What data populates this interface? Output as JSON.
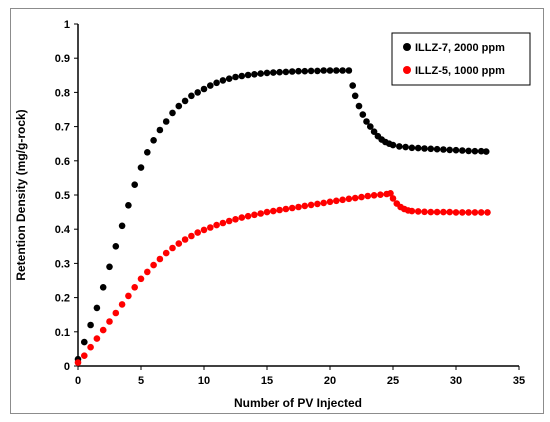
{
  "chart_data": {
    "type": "scatter",
    "xlabel": "Number of PV Injected",
    "ylabel": "Retention Density (mg/g-rock)",
    "xlim": [
      0,
      35
    ],
    "ylim": [
      0,
      1
    ],
    "x_ticks": [
      "0",
      "5",
      "10",
      "15",
      "20",
      "25",
      "30",
      "35"
    ],
    "y_ticks": [
      "0",
      "0.1",
      "0.2",
      "0.3",
      "0.4",
      "0.5",
      "0.6",
      "0.7",
      "0.8",
      "0.9",
      "1"
    ],
    "grid": false,
    "legend_position": "top-right",
    "series": [
      {
        "name": "ILLZ-7, 2000 ppm",
        "color": "#000000",
        "x": [
          0.0,
          0.5,
          1.0,
          1.5,
          2.0,
          2.5,
          3.0,
          3.5,
          4.0,
          4.5,
          5.0,
          5.5,
          6.0,
          6.5,
          7.0,
          7.5,
          8.0,
          8.5,
          9.0,
          9.5,
          10.0,
          10.5,
          11.0,
          11.5,
          12.0,
          12.5,
          13.0,
          13.5,
          14.0,
          14.5,
          15.0,
          15.5,
          16.0,
          16.5,
          17.0,
          17.5,
          18.0,
          18.5,
          19.0,
          19.5,
          20.0,
          20.5,
          21.0,
          21.5,
          21.8,
          22.0,
          22.3,
          22.6,
          22.9,
          23.2,
          23.5,
          23.8,
          24.1,
          24.4,
          24.7,
          25.0,
          25.5,
          26.0,
          26.5,
          27.0,
          27.5,
          28.0,
          28.5,
          29.0,
          29.5,
          30.0,
          30.5,
          31.0,
          31.5,
          32.0,
          32.4
        ],
        "y": [
          0.02,
          0.07,
          0.12,
          0.17,
          0.23,
          0.29,
          0.35,
          0.41,
          0.47,
          0.53,
          0.58,
          0.625,
          0.66,
          0.69,
          0.715,
          0.74,
          0.76,
          0.775,
          0.79,
          0.8,
          0.81,
          0.82,
          0.828,
          0.835,
          0.84,
          0.845,
          0.848,
          0.851,
          0.853,
          0.855,
          0.857,
          0.858,
          0.859,
          0.86,
          0.861,
          0.862,
          0.862,
          0.863,
          0.863,
          0.864,
          0.864,
          0.864,
          0.864,
          0.864,
          0.82,
          0.79,
          0.76,
          0.735,
          0.715,
          0.7,
          0.685,
          0.672,
          0.662,
          0.655,
          0.65,
          0.646,
          0.642,
          0.64,
          0.638,
          0.637,
          0.636,
          0.635,
          0.634,
          0.633,
          0.632,
          0.631,
          0.63,
          0.629,
          0.628,
          0.628,
          0.627
        ]
      },
      {
        "name": "ILLZ-5, 1000 ppm",
        "color": "#ff0000",
        "x": [
          0.0,
          0.5,
          1.0,
          1.5,
          2.0,
          2.5,
          3.0,
          3.5,
          4.0,
          4.5,
          5.0,
          5.5,
          6.0,
          6.5,
          7.0,
          7.5,
          8.0,
          8.5,
          9.0,
          9.5,
          10.0,
          10.5,
          11.0,
          11.5,
          12.0,
          12.5,
          13.0,
          13.5,
          14.0,
          14.5,
          15.0,
          15.5,
          16.0,
          16.5,
          17.0,
          17.5,
          18.0,
          18.5,
          19.0,
          19.5,
          20.0,
          20.5,
          21.0,
          21.5,
          22.0,
          22.5,
          23.0,
          23.5,
          24.0,
          24.5,
          24.8,
          25.0,
          25.3,
          25.6,
          25.9,
          26.2,
          26.5,
          27.0,
          27.5,
          28.0,
          28.5,
          29.0,
          29.5,
          30.0,
          30.5,
          31.0,
          31.5,
          32.0,
          32.5
        ],
        "y": [
          0.01,
          0.03,
          0.055,
          0.08,
          0.105,
          0.13,
          0.155,
          0.18,
          0.205,
          0.23,
          0.255,
          0.275,
          0.295,
          0.313,
          0.33,
          0.345,
          0.358,
          0.37,
          0.38,
          0.39,
          0.398,
          0.405,
          0.412,
          0.418,
          0.424,
          0.429,
          0.434,
          0.438,
          0.442,
          0.446,
          0.45,
          0.453,
          0.456,
          0.459,
          0.462,
          0.465,
          0.468,
          0.471,
          0.474,
          0.477,
          0.48,
          0.483,
          0.486,
          0.489,
          0.491,
          0.494,
          0.497,
          0.499,
          0.501,
          0.503,
          0.505,
          0.49,
          0.475,
          0.465,
          0.459,
          0.455,
          0.453,
          0.452,
          0.451,
          0.45,
          0.45,
          0.45,
          0.45,
          0.449,
          0.449,
          0.449,
          0.449,
          0.449,
          0.449
        ]
      }
    ]
  }
}
